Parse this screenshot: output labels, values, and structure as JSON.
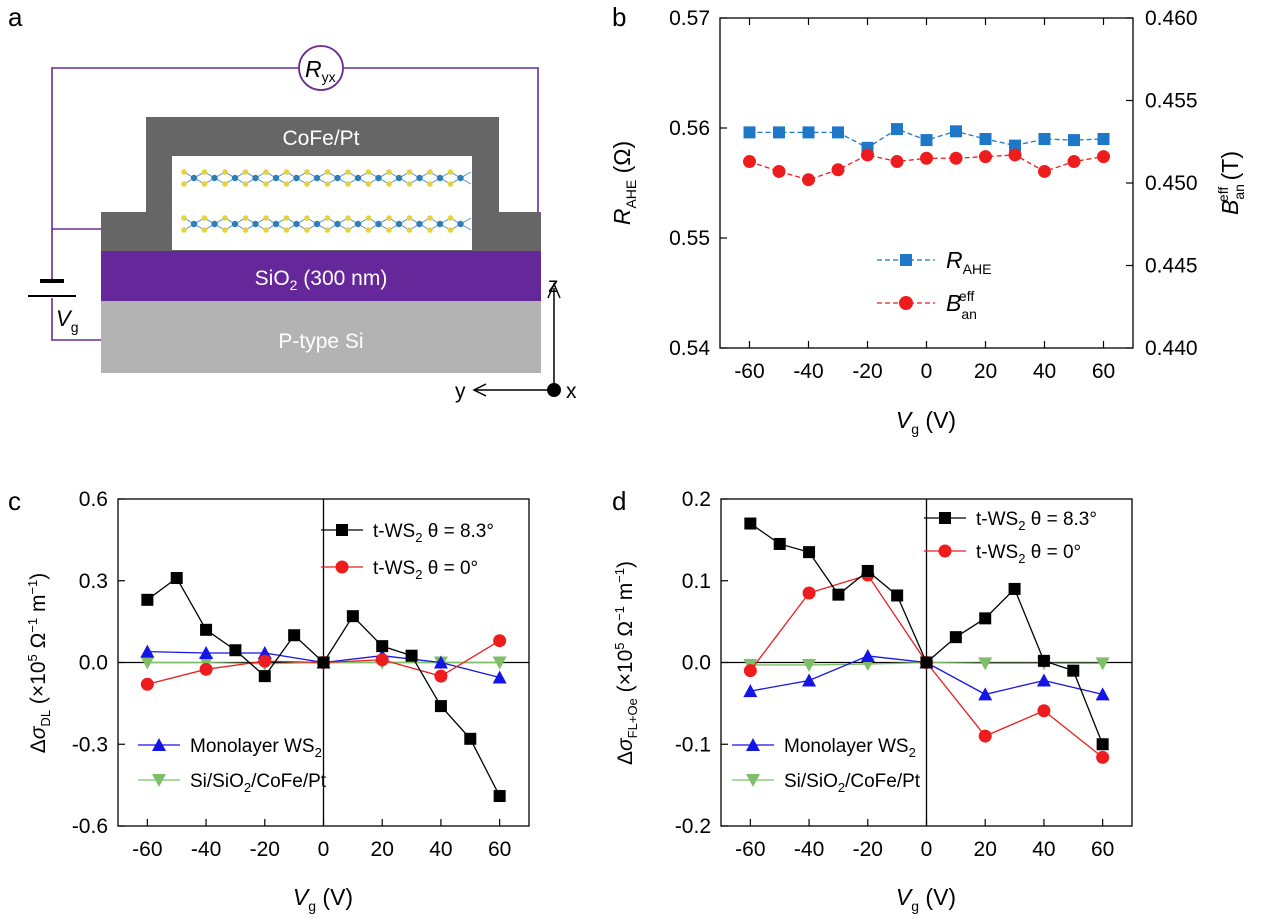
{
  "panels": {
    "a": {
      "letter": "a",
      "ryx_main": "R",
      "ryx_sub": "yx",
      "cofe_label": "CoFe/Pt",
      "sio2_main": "SiO",
      "sio2_sub": "2",
      "sio2_rest": " (300 nm)",
      "si_label": "P-type Si",
      "vg_main": "V",
      "vg_sub": "g",
      "axis_z": "z",
      "axis_y": "y",
      "axis_x": "x",
      "colors": {
        "substrate": "#b3b3b3",
        "oxide": "#66279a",
        "metal": "#666666",
        "wire": "#6a2c91",
        "atom_w": "#2f7fb5",
        "atom_s": "#e6d23a"
      }
    },
    "b": {
      "letter": "b",
      "ylabel_left_main": "R",
      "ylabel_left_sub": "AHE",
      "ylabel_left_unit": " (Ω)",
      "ylabel_right_main": "B",
      "ylabel_right_sub": "an",
      "ylabel_right_sup": "eff",
      "ylabel_right_unit": " (T)",
      "xlabel_main": "V",
      "xlabel_sub": "g",
      "xlabel_unit": " (V)",
      "legend": [
        {
          "main": "R",
          "sub": "AHE",
          "sup": ""
        },
        {
          "main": "B",
          "sub": "an",
          "sup": "eff"
        }
      ]
    },
    "c": {
      "letter": "c",
      "ylabel_prefix": "Δ",
      "ylabel_sigma": "σ",
      "ylabel_sub": "DL",
      "ylabel_unit": " (×10",
      "ylabel_exp": "5",
      "ylabel_unit2": " Ω",
      "ylabel_exp2": "−1",
      "ylabel_unit3": " m",
      "ylabel_exp3": "−1",
      "ylabel_close": ")",
      "xlabel_main": "V",
      "xlabel_sub": "g",
      "xlabel_unit": " (V)",
      "legend": [
        {
          "text": "t-WS",
          "sub": "2",
          "rest": " θ = 8.3°"
        },
        {
          "text": "t-WS",
          "sub": "2",
          "rest": " θ = 0°"
        },
        {
          "text": "Monolayer WS",
          "sub": "2",
          "rest": ""
        },
        {
          "text": "Si/SiO",
          "sub": "2",
          "rest": "/CoFe/Pt"
        }
      ]
    },
    "d": {
      "letter": "d",
      "ylabel_prefix": "Δ",
      "ylabel_sigma": "σ",
      "ylabel_sub": "FL+Oe",
      "ylabel_unit": " (×10",
      "ylabel_exp": "5",
      "ylabel_unit2": " Ω",
      "ylabel_exp2": "−1",
      "ylabel_unit3": " m",
      "ylabel_exp3": "−1",
      "ylabel_close": ")",
      "xlabel_main": "V",
      "xlabel_sub": "g",
      "xlabel_unit": " (V)",
      "legend": [
        {
          "text": "t-WS",
          "sub": "2",
          "rest": " θ = 8.3°"
        },
        {
          "text": "t-WS",
          "sub": "2",
          "rest": " θ = 0°"
        },
        {
          "text": "Monolayer WS",
          "sub": "2",
          "rest": ""
        },
        {
          "text": "Si/SiO",
          "sub": "2",
          "rest": "/CoFe/Pt"
        }
      ]
    }
  },
  "chart_data": [
    {
      "panel": "b",
      "type": "line",
      "x": [
        -60,
        -50,
        -40,
        -30,
        -20,
        -10,
        0,
        10,
        20,
        30,
        40,
        50,
        60
      ],
      "xlim": [
        -70,
        70
      ],
      "xticks": [
        -60,
        -40,
        -20,
        0,
        20,
        40,
        60
      ],
      "ylim": [
        0.54,
        0.57
      ],
      "yticks": [
        0.54,
        0.55,
        0.56,
        0.57
      ],
      "ytick_labels": [
        "0.54",
        "0.55",
        "0.56",
        "0.57"
      ],
      "y2lim": [
        0.44,
        0.46
      ],
      "y2ticks": [
        0.44,
        0.445,
        0.45,
        0.455,
        0.46
      ],
      "y2tick_labels": [
        "0.440",
        "0.445",
        "0.450",
        "0.455",
        "0.460"
      ],
      "series": [
        {
          "name": "R_AHE",
          "axis": "left",
          "color": "#1f77c8",
          "marker": "square",
          "dash": true,
          "values": [
            0.5596,
            0.5596,
            0.5596,
            0.5596,
            0.5582,
            0.5599,
            0.5589,
            0.5597,
            0.559,
            0.5584,
            0.559,
            0.5589,
            0.559
          ]
        },
        {
          "name": "B_an_eff",
          "axis": "right",
          "color": "#ee1c1c",
          "marker": "circle",
          "dash": true,
          "values": [
            0.4513,
            0.4507,
            0.4502,
            0.4508,
            0.4517,
            0.4513,
            0.4515,
            0.4515,
            0.4516,
            0.4517,
            0.4507,
            0.4513,
            0.4516
          ]
        }
      ]
    },
    {
      "panel": "c",
      "type": "line",
      "xlim": [
        -70,
        70
      ],
      "xticks": [
        -60,
        -40,
        -20,
        0,
        20,
        40,
        60
      ],
      "ylim": [
        -0.6,
        0.6
      ],
      "yticks": [
        -0.6,
        -0.3,
        0.0,
        0.3,
        0.6
      ],
      "ytick_labels": [
        "-0.6",
        "-0.3",
        "0.0",
        "0.3",
        "0.6"
      ],
      "series": [
        {
          "name": "t-WS2 θ = 8.3°",
          "color": "#000000",
          "marker": "square",
          "x": [
            -60,
            -50,
            -40,
            -30,
            -20,
            -10,
            0,
            10,
            20,
            30,
            40,
            50,
            60
          ],
          "values": [
            0.23,
            0.31,
            0.12,
            0.045,
            -0.05,
            0.1,
            0.0,
            0.17,
            0.06,
            0.025,
            -0.16,
            -0.28,
            -0.49
          ]
        },
        {
          "name": "t-WS2 θ = 0°",
          "color": "#ee1c1c",
          "marker": "circle",
          "x": [
            -60,
            -40,
            -20,
            0,
            20,
            40,
            60
          ],
          "values": [
            -0.08,
            -0.025,
            0.005,
            0.0,
            0.01,
            -0.05,
            0.08
          ]
        },
        {
          "name": "Monolayer WS2",
          "color": "#1515e6",
          "marker": "triangle-up",
          "x": [
            -60,
            -40,
            -20,
            0,
            20,
            40,
            60
          ],
          "values": [
            0.04,
            0.035,
            0.035,
            0.0,
            0.025,
            0.0,
            -0.055
          ]
        },
        {
          "name": "Si/SiO2/CoFe/Pt",
          "color": "#7fbf6a",
          "marker": "triangle-down",
          "x": [
            -60,
            -40,
            -20,
            0,
            20,
            40,
            60
          ],
          "values": [
            0.0,
            0.0,
            -0.005,
            0.0,
            0.0,
            0.0,
            0.0
          ]
        }
      ]
    },
    {
      "panel": "d",
      "type": "line",
      "xlim": [
        -70,
        70
      ],
      "xticks": [
        -60,
        -40,
        -20,
        0,
        20,
        40,
        60
      ],
      "ylim": [
        -0.2,
        0.2
      ],
      "yticks": [
        -0.2,
        -0.1,
        0.0,
        0.1,
        0.2
      ],
      "ytick_labels": [
        "-0.2",
        "-0.1",
        "0.0",
        "0.1",
        "0.2"
      ],
      "series": [
        {
          "name": "t-WS2 θ = 8.3°",
          "color": "#000000",
          "marker": "square",
          "x": [
            -60,
            -50,
            -40,
            -30,
            -20,
            -10,
            0,
            10,
            20,
            30,
            40,
            50,
            60
          ],
          "values": [
            0.17,
            0.145,
            0.135,
            0.083,
            0.112,
            0.082,
            0.0,
            0.031,
            0.054,
            0.09,
            0.002,
            -0.01,
            -0.1
          ]
        },
        {
          "name": "t-WS2 θ = 0°",
          "color": "#ee1c1c",
          "marker": "circle",
          "x": [
            -60,
            -40,
            -20,
            0,
            20,
            40,
            60
          ],
          "values": [
            -0.01,
            0.085,
            0.107,
            0.0,
            -0.09,
            -0.059,
            -0.116
          ]
        },
        {
          "name": "Monolayer WS2",
          "color": "#1515e6",
          "marker": "triangle-up",
          "x": [
            -60,
            -40,
            -20,
            0,
            20,
            40,
            60
          ],
          "values": [
            -0.035,
            -0.022,
            0.008,
            0.0,
            -0.039,
            -0.022,
            -0.039
          ]
        },
        {
          "name": "Si/SiO2/CoFe/Pt",
          "color": "#7fbf6a",
          "marker": "triangle-down",
          "x": [
            -60,
            -40,
            -20,
            0,
            20,
            40,
            60
          ],
          "values": [
            -0.003,
            -0.003,
            -0.002,
            0.0,
            -0.001,
            -0.001,
            -0.001
          ]
        }
      ]
    }
  ]
}
